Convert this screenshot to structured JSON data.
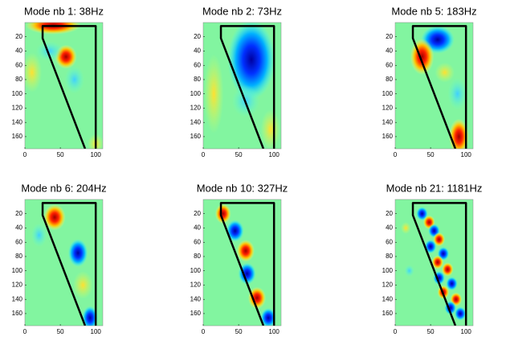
{
  "chart_data": [
    {
      "type": "heatmap",
      "title": "Mode nb 1: 38Hz",
      "xlim": [
        0,
        110
      ],
      "ylim": [
        0,
        177
      ],
      "y_reversed": true,
      "xticks": [
        0,
        50,
        100
      ],
      "yticks": [
        20,
        40,
        60,
        80,
        100,
        120,
        140,
        160
      ]
    },
    {
      "type": "heatmap",
      "title": "Mode nb 2: 73Hz",
      "xlim": [
        0,
        110
      ],
      "ylim": [
        0,
        177
      ],
      "y_reversed": true,
      "xticks": [
        0,
        50,
        100
      ],
      "yticks": [
        20,
        40,
        60,
        80,
        100,
        120,
        140,
        160
      ]
    },
    {
      "type": "heatmap",
      "title": "Mode nb 5: 183Hz",
      "xlim": [
        0,
        110
      ],
      "ylim": [
        0,
        177
      ],
      "y_reversed": true,
      "xticks": [
        0,
        50,
        100
      ],
      "yticks": [
        20,
        40,
        60,
        80,
        100,
        120,
        140,
        160
      ]
    },
    {
      "type": "heatmap",
      "title": "Mode nb 6: 204Hz",
      "xlim": [
        0,
        110
      ],
      "ylim": [
        0,
        177
      ],
      "y_reversed": true,
      "xticks": [
        0,
        50,
        100
      ],
      "yticks": [
        20,
        40,
        60,
        80,
        100,
        120,
        140,
        160
      ]
    },
    {
      "type": "heatmap",
      "title": "Mode nb 10: 327Hz",
      "xlim": [
        0,
        110
      ],
      "ylim": [
        0,
        177
      ],
      "y_reversed": true,
      "xticks": [
        0,
        50,
        100
      ],
      "yticks": [
        20,
        40,
        60,
        80,
        100,
        120,
        140,
        160
      ]
    },
    {
      "type": "heatmap",
      "title": "Mode nb 21: 1181Hz",
      "xlim": [
        0,
        110
      ],
      "ylim": [
        0,
        177
      ],
      "y_reversed": true,
      "xticks": [
        0,
        50,
        100
      ],
      "yticks": [
        20,
        40,
        60,
        80,
        100,
        120,
        140,
        160
      ]
    }
  ]
}
